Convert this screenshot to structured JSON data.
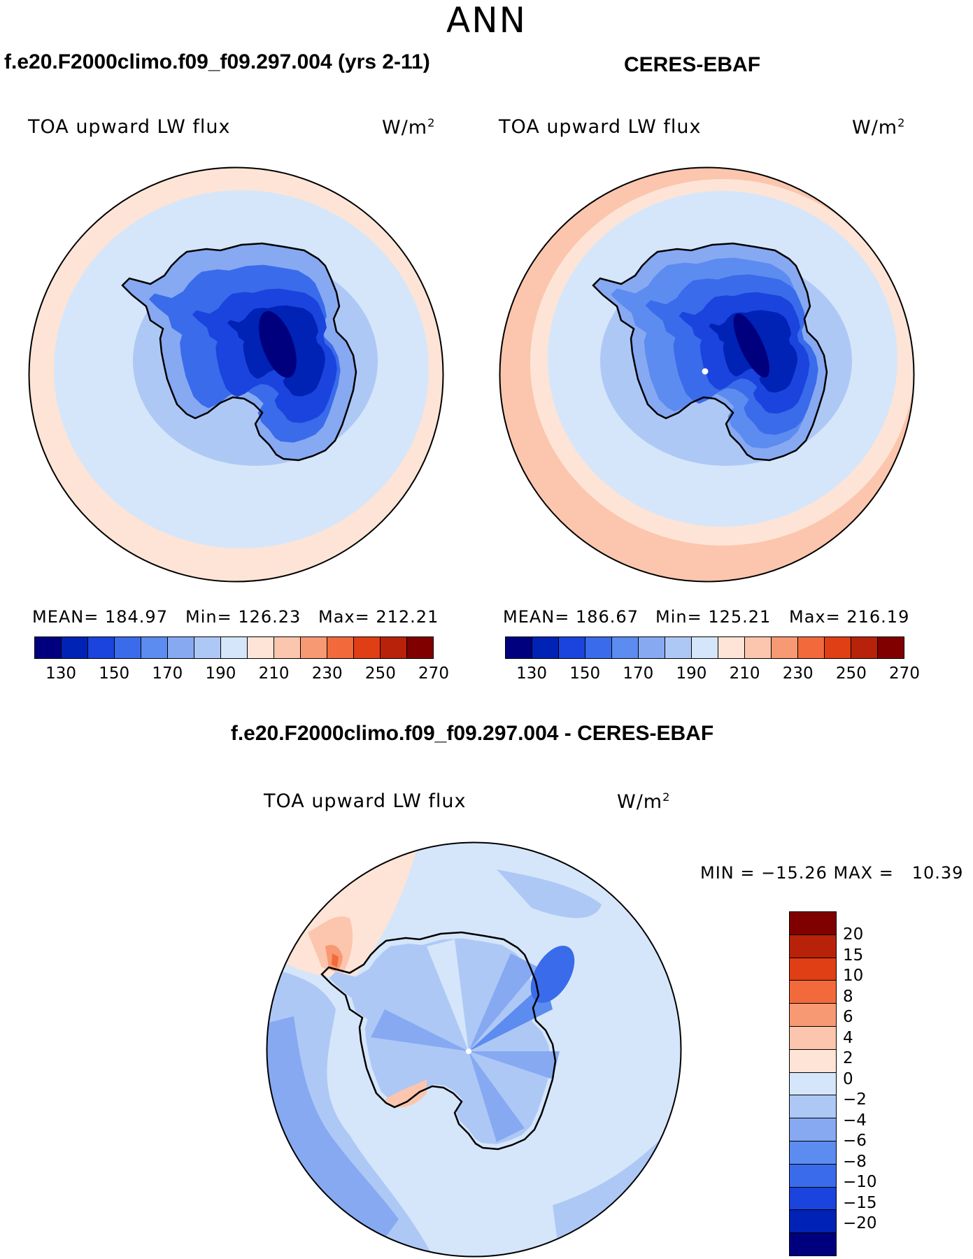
{
  "season": "ANN",
  "panels": [
    {
      "title": "f.e20.F2000climo.f09_f09.297.004 (yrs 2-11)",
      "variable": "TOA upward LW flux",
      "units": "W/m",
      "units_exp": "2",
      "stats": {
        "mean": "MEAN= 184.97",
        "min": "Min= 126.23",
        "max": "Max= 212.21"
      }
    },
    {
      "title": "CERES-EBAF",
      "variable": "TOA upward LW flux",
      "units": "W/m",
      "units_exp": "2",
      "stats": {
        "mean": "MEAN= 186.67",
        "min": "Min= 125.21",
        "max": "Max= 216.19"
      }
    }
  ],
  "abs_colorbar": {
    "colors": [
      "#00007f",
      "#0022b5",
      "#1a44dd",
      "#3a6bea",
      "#5d8cf0",
      "#86a9f2",
      "#aec8f6",
      "#d5e6fa",
      "#fde4d6",
      "#fbc6ad",
      "#f79a74",
      "#f26a3b",
      "#e03e14",
      "#b8220a",
      "#800000"
    ],
    "labels": [
      "130",
      "150",
      "170",
      "190",
      "210",
      "230",
      "250",
      "270"
    ]
  },
  "diff_panel": {
    "title": "f.e20.F2000climo.f09_f09.297.004 - CERES-EBAF",
    "variable": "TOA upward LW flux",
    "units": "W/m",
    "units_exp": "2",
    "stats": "MIN = −15.26 MAX =   10.39"
  },
  "diff_colorbar": {
    "colors": [
      "#800000",
      "#b8220a",
      "#e03e14",
      "#f26a3b",
      "#f79a74",
      "#fbc6ad",
      "#fde4d6",
      "#d5e6fa",
      "#aec8f6",
      "#86a9f2",
      "#5d8cf0",
      "#3a6bea",
      "#1a44dd",
      "#0022b5",
      "#00007f"
    ],
    "labels": [
      "20",
      "15",
      "10",
      "8",
      "6",
      "4",
      "2",
      "0",
      "−2",
      "−4",
      "−6",
      "−8",
      "−10",
      "−15",
      "−20"
    ]
  }
}
